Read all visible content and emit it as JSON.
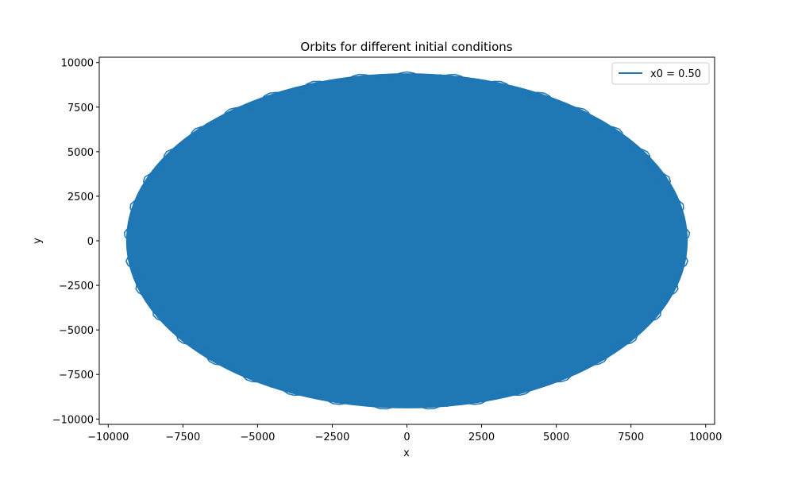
{
  "chart_data": {
    "type": "line",
    "title": "Orbits for different initial conditions",
    "xlabel": "x",
    "ylabel": "y",
    "xlim": [
      -10300,
      10300
    ],
    "ylim": [
      -10300,
      10300
    ],
    "x_ticks": [
      -10000,
      -7500,
      -5000,
      -2500,
      0,
      2500,
      5000,
      7500,
      10000
    ],
    "x_tick_labels": [
      "−10000",
      "−7500",
      "−5000",
      "−2500",
      "0",
      "2500",
      "5000",
      "7500",
      "10000"
    ],
    "y_ticks": [
      -10000,
      -7500,
      -5000,
      -2500,
      0,
      2500,
      5000,
      7500,
      10000
    ],
    "y_tick_labels": [
      "−10000",
      "−7500",
      "−5000",
      "−2500",
      "0",
      "2500",
      "5000",
      "7500",
      "10000"
    ],
    "grid": false,
    "legend_position": "top-right",
    "series": [
      {
        "name": "x0 = 0.50",
        "color": "#1f77b4",
        "shape": "filled elliptical orbit centered at origin",
        "x_range": [
          -9400,
          9400
        ],
        "y_range": [
          -9400,
          9400
        ]
      }
    ]
  }
}
